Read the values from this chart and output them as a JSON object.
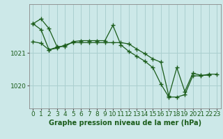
{
  "title": "Graphe pression niveau de la mer (hPa)",
  "bg_color": "#cce8e8",
  "plot_bg_color": "#cce8e8",
  "grid_color": "#aacfcf",
  "line_color": "#1a5c1a",
  "marker_color": "#1a5c1a",
  "xlim": [
    -0.5,
    23.5
  ],
  "ylim": [
    1019.3,
    1022.5
  ],
  "yticks": [
    1020,
    1021
  ],
  "xticks": [
    0,
    1,
    2,
    3,
    4,
    5,
    6,
    7,
    8,
    9,
    10,
    11,
    12,
    13,
    14,
    15,
    16,
    17,
    18,
    19,
    20,
    21,
    22,
    23
  ],
  "series": [
    {
      "x": [
        0,
        1,
        2,
        3,
        4,
        5,
        6,
        7,
        8,
        9,
        10,
        11,
        12,
        13,
        14,
        15,
        16,
        17,
        18,
        19,
        20,
        21,
        22,
        23
      ],
      "y": [
        1021.9,
        1022.05,
        1021.75,
        1021.2,
        1021.2,
        1021.35,
        1021.38,
        1021.38,
        1021.38,
        1021.38,
        1021.85,
        1021.25,
        1021.05,
        1020.9,
        1020.75,
        1020.55,
        1020.05,
        1019.65,
        1019.65,
        1019.72,
        1020.3,
        1020.3,
        1020.35,
        1020.35
      ]
    },
    {
      "x": [
        0,
        1,
        2,
        3,
        4,
        5,
        6,
        7,
        8,
        9,
        10,
        11,
        12,
        13,
        14,
        15,
        16,
        17,
        18,
        19,
        20,
        21,
        22
      ],
      "y": [
        1021.9,
        1021.72,
        1021.1,
        1021.15,
        1021.25,
        1021.32,
        1021.32,
        1021.32,
        1021.32,
        1021.32,
        1021.32,
        1021.32,
        1021.28,
        1021.12,
        1020.98,
        1020.82,
        1020.72,
        1019.68,
        1020.55,
        1019.82,
        1020.38,
        1020.32,
        1020.32
      ]
    },
    {
      "x": [
        0,
        1,
        2,
        3
      ],
      "y": [
        1021.35,
        1021.3,
        1021.1,
        1021.18
      ]
    }
  ],
  "xlabel_fontsize": 7,
  "tick_fontsize": 6.5
}
